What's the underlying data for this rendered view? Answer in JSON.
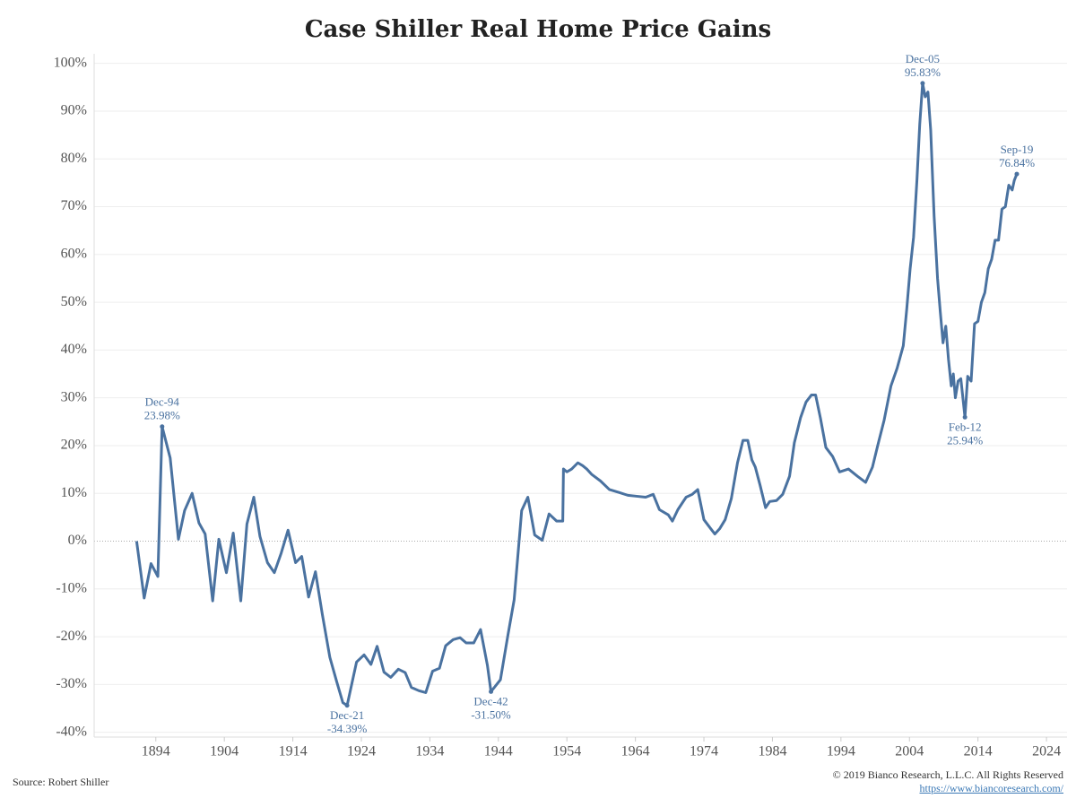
{
  "chart_data": {
    "type": "line",
    "title": "Case Shiller Real Home Price Gains",
    "source": "Source: Robert Shiller",
    "copyright": "© 2019 Bianco Research, L.L.C. All Rights Reserved",
    "url": "https://www.biancoresearch.com/",
    "color": "#4a72a0",
    "xlim": [
      1885,
      2027
    ],
    "ylim": [
      -41,
      102
    ],
    "xticks": [
      1894,
      1904,
      1914,
      1924,
      1934,
      1944,
      1954,
      1964,
      1974,
      1984,
      1994,
      2004,
      2014,
      2024
    ],
    "yticks": [
      {
        "value": -40,
        "label": "-40%"
      },
      {
        "value": -30,
        "label": "-30%"
      },
      {
        "value": -20,
        "label": "-20%"
      },
      {
        "value": -10,
        "label": "-10%"
      },
      {
        "value": 0,
        "label": "0%"
      },
      {
        "value": 10,
        "label": "10%"
      },
      {
        "value": 20,
        "label": "20%"
      },
      {
        "value": 30,
        "label": "30%"
      },
      {
        "value": 40,
        "label": "40%"
      },
      {
        "value": 50,
        "label": "50%"
      },
      {
        "value": 60,
        "label": "60%"
      },
      {
        "value": 70,
        "label": "70%"
      },
      {
        "value": 80,
        "label": "80%"
      },
      {
        "value": 90,
        "label": "90%"
      },
      {
        "value": 100,
        "label": "100%"
      }
    ],
    "grid": true,
    "x": [
      1891.2,
      1892.3,
      1893.3,
      1894.3,
      1894.92,
      1896.1,
      1897.3,
      1898.2,
      1899.3,
      1900.3,
      1901.2,
      1902.3,
      1903.2,
      1904.3,
      1905.3,
      1906.4,
      1907.3,
      1908.3,
      1909.2,
      1910.3,
      1911.3,
      1912.3,
      1913.3,
      1914.4,
      1915.3,
      1916.3,
      1917.3,
      1918.3,
      1919.4,
      1920.4,
      1921.3,
      1921.92,
      1923.3,
      1924.4,
      1925.4,
      1926.3,
      1927.3,
      1928.3,
      1929.4,
      1930.4,
      1931.3,
      1932.4,
      1933.4,
      1934.4,
      1935.4,
      1936.3,
      1937.4,
      1938.4,
      1939.3,
      1940.4,
      1941.4,
      1942.4,
      1942.92,
      1944.3,
      1945.4,
      1946.3,
      1947.4,
      1948.3,
      1949.3,
      1950.4,
      1951.4,
      1952.5,
      1953.4,
      1953.5,
      1954,
      1954.7,
      1955.6,
      1956.3,
      1956.9,
      1957.6,
      1958.9,
      1960.2,
      1961.6,
      1962.9,
      1964.2,
      1965.5,
      1966.6,
      1967.5,
      1968.8,
      1969.4,
      1970.2,
      1971.4,
      1972.3,
      1973.1,
      1974,
      1975,
      1975.6,
      1976.3,
      1977.1,
      1978,
      1978.9,
      1979.7,
      1980.4,
      1981,
      1981.5,
      1982.2,
      1983,
      1983.6,
      1984.6,
      1985.5,
      1986.5,
      1987.2,
      1988.1,
      1988.9,
      1989.7,
      1990.3,
      1991,
      1991.8,
      1992.8,
      1993.8,
      1995.1,
      1996.4,
      1997.6,
      1998.6,
      1999.4,
      2000.3,
      2001.3,
      2002.2,
      2003.1,
      2003.6,
      2004.1,
      2004.6,
      2005.1,
      2005.5,
      2005.92,
      2006.3,
      2006.7,
      2007.1,
      2007.6,
      2008.1,
      2008.5,
      2008.9,
      2009.3,
      2009.7,
      2010.1,
      2010.4,
      2010.7,
      2011.1,
      2011.5,
      2012.1,
      2012.5,
      2013,
      2013.5,
      2014,
      2014.5,
      2015,
      2015.5,
      2016,
      2016.5,
      2017,
      2017.5,
      2018,
      2018.5,
      2019,
      2019.3,
      2019.67
    ],
    "values": [
      0,
      -11.9,
      -4.7,
      -7.4,
      23.98,
      17.4,
      0.4,
      6.4,
      10,
      3.8,
      1.5,
      -12.5,
      0.4,
      -6.6,
      1.7,
      -12.5,
      3.6,
      9.2,
      1,
      -4.5,
      -6.6,
      -2.5,
      2.3,
      -4.5,
      -3.2,
      -11.7,
      -6.4,
      -15.3,
      -24.3,
      -29.4,
      -33.8,
      -34.39,
      -25.3,
      -23.8,
      -25.8,
      -22,
      -27.4,
      -28.5,
      -26.8,
      -27.5,
      -30.6,
      -31.3,
      -31.7,
      -27.2,
      -26.6,
      -21.9,
      -20.6,
      -20.2,
      -21.3,
      -21.3,
      -18.5,
      -26,
      -31.5,
      -29,
      -19.6,
      -12.3,
      6.4,
      9.2,
      1.3,
      0.2,
      5.7,
      4.2,
      4.2,
      15.1,
      14.5,
      15.1,
      16.4,
      15.8,
      15.1,
      14,
      12.6,
      10.8,
      10.2,
      9.6,
      9.4,
      9.2,
      9.8,
      6.6,
      5.5,
      4.2,
      6.6,
      9.2,
      9.8,
      10.8,
      4.5,
      2.6,
      1.5,
      2.6,
      4.5,
      8.9,
      16.4,
      21.1,
      21.1,
      17,
      15.5,
      11.7,
      7,
      8.3,
      8.5,
      9.8,
      13.6,
      20.6,
      25.8,
      29.1,
      30.6,
      30.6,
      25.8,
      19.6,
      17.7,
      14.5,
      15.1,
      13.6,
      12.3,
      15.5,
      20.2,
      25.3,
      32.5,
      36.2,
      40.9,
      48.5,
      57,
      63.6,
      75.8,
      87.2,
      95.83,
      93,
      94,
      86,
      68,
      55,
      48,
      41.5,
      45,
      38,
      32.5,
      35,
      30,
      33.5,
      34,
      25.94,
      34.5,
      33.5,
      45.5,
      46,
      50,
      52,
      57,
      59,
      63,
      63,
      69.5,
      70,
      74.5,
      73.5,
      75.5,
      76.84
    ],
    "annotations": [
      {
        "date": "Dec-94",
        "x": 1894.92,
        "value": 23.98,
        "value_label": "23.98%"
      },
      {
        "date": "Dec-21",
        "x": 1921.92,
        "value": -34.39,
        "value_label": "-34.39%"
      },
      {
        "date": "Dec-42",
        "x": 1942.92,
        "value": -31.5,
        "value_label": "-31.50%"
      },
      {
        "date": "Dec-05",
        "x": 2005.92,
        "value": 95.83,
        "value_label": "95.83%"
      },
      {
        "date": "Feb-12",
        "x": 2012.1,
        "value": 25.94,
        "value_label": "25.94%"
      },
      {
        "date": "Sep-19",
        "x": 2019.67,
        "value": 76.84,
        "value_label": "76.84%"
      }
    ]
  }
}
